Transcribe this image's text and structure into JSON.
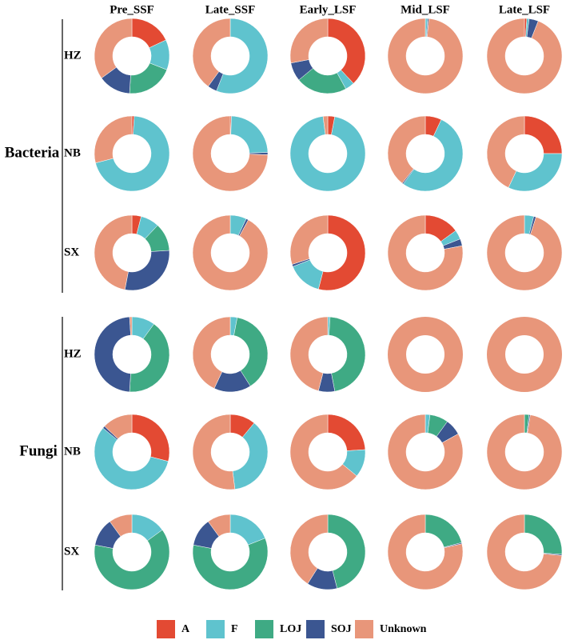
{
  "chart_data": {
    "type": "pie",
    "variant": "donut-grid",
    "columns": [
      "Pre_SSF",
      "Late_SSF",
      "Early_LSF",
      "Mid_LSF",
      "Late_LSF"
    ],
    "categories": [
      "A",
      "F",
      "LOJ",
      "SOJ",
      "Unknown"
    ],
    "colors": {
      "A": "#E34A33",
      "F": "#5FC3CE",
      "LOJ": "#3FAA84",
      "SOJ": "#3B5691",
      "Unknown": "#E8967A"
    },
    "legend": {
      "position": "bottom",
      "entries": [
        "A",
        "F",
        "LOJ",
        "SOJ",
        "Unknown"
      ]
    },
    "groups": [
      {
        "name": "Bacteria",
        "rows": [
          {
            "site": "HZ",
            "values": [
              [
                18,
                13,
                20,
                14,
                35
              ],
              [
                0,
                56,
                0,
                4,
                40
              ],
              [
                38,
                4,
                22,
                8,
                28
              ],
              [
                0,
                1,
                0,
                0.5,
                98.5
              ],
              [
                1,
                1,
                0,
                4,
                94
              ]
            ]
          },
          {
            "site": "NB",
            "values": [
              [
                1,
                70,
                0,
                0,
                29
              ],
              [
                0.5,
                24,
                0,
                1,
                74.5
              ],
              [
                3,
                95,
                0,
                0,
                2
              ],
              [
                7,
                53,
                0,
                0.5,
                39.5
              ],
              [
                25,
                32,
                0,
                0,
                43
              ]
            ]
          },
          {
            "site": "SX",
            "values": [
              [
                4,
                8,
                12,
                29,
                47
              ],
              [
                0,
                7,
                0,
                1,
                92
              ],
              [
                54,
                15,
                0,
                1,
                30
              ],
              [
                15,
                4,
                0,
                3,
                78
              ],
              [
                0,
                4,
                0,
                1,
                95
              ]
            ]
          }
        ]
      },
      {
        "name": "Fungi",
        "rows": [
          {
            "site": "HZ",
            "values": [
              [
                0,
                10,
                41,
                48,
                1
              ],
              [
                0,
                3,
                38,
                16,
                43
              ],
              [
                0,
                1,
                46,
                7,
                46
              ],
              [
                0,
                0,
                0,
                0,
                100
              ],
              [
                0,
                0,
                0,
                0,
                100
              ]
            ]
          },
          {
            "site": "NB",
            "values": [
              [
                29,
                57,
                0,
                1,
                13
              ],
              [
                11,
                37,
                0,
                0,
                52
              ],
              [
                24,
                12,
                0,
                0,
                64
              ],
              [
                0,
                2,
                8,
                7,
                83
              ],
              [
                0,
                0,
                2,
                0.5,
                97.5
              ]
            ]
          },
          {
            "site": "SX",
            "values": [
              [
                0,
                15,
                63,
                12,
                10
              ],
              [
                0,
                19,
                59,
                12,
                10
              ],
              [
                0,
                0,
                46,
                13,
                41
              ],
              [
                0,
                0,
                21,
                0.5,
                78.5
              ],
              [
                0,
                0,
                26,
                0.5,
                73.5
              ]
            ]
          }
        ]
      }
    ]
  }
}
